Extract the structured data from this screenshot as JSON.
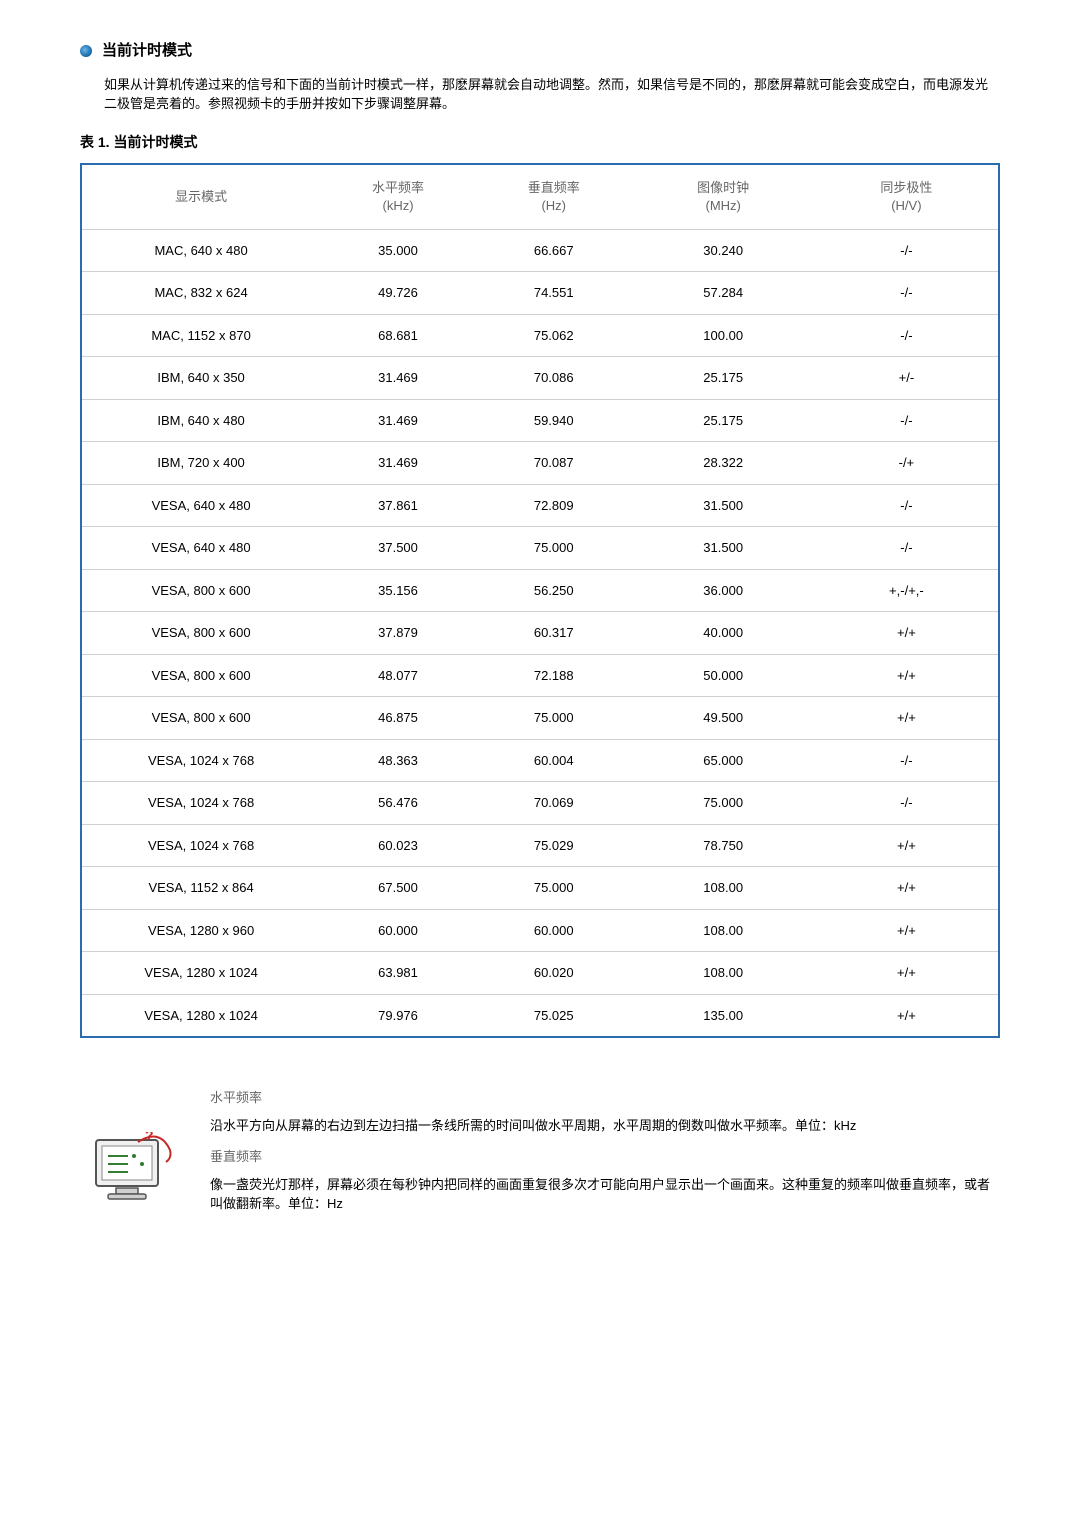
{
  "section": {
    "title": "当前计时模式",
    "intro": "如果从计算机传递过来的信号和下面的当前计时模式一样，那麽屏幕就会自动地调整。然而，如果信号是不同的，那麽屏幕就可能会变成空白，而电源发光二极管是亮着的。参照视频卡的手册并按如下步骤调整屏幕。"
  },
  "table": {
    "title": "表 1. 当前计时模式",
    "headers": {
      "mode": "显示模式",
      "hfreq": "水平频率",
      "hfreq_unit": "(kHz)",
      "vfreq": "垂直频率",
      "vfreq_unit": "(Hz)",
      "pclock": "图像时钟",
      "pclock_unit": "(MHz)",
      "sync": "同步极性",
      "sync_unit": "(H/V)"
    },
    "rows": [
      {
        "mode": "MAC, 640 x 480",
        "h": "35.000",
        "v": "66.667",
        "p": "30.240",
        "s": "-/-"
      },
      {
        "mode": "MAC, 832 x 624",
        "h": "49.726",
        "v": "74.551",
        "p": "57.284",
        "s": "-/-"
      },
      {
        "mode": "MAC, 1152 x 870",
        "h": "68.681",
        "v": "75.062",
        "p": "100.00",
        "s": "-/-"
      },
      {
        "mode": "IBM, 640 x 350",
        "h": "31.469",
        "v": "70.086",
        "p": "25.175",
        "s": "+/-"
      },
      {
        "mode": "IBM, 640 x 480",
        "h": "31.469",
        "v": "59.940",
        "p": "25.175",
        "s": "-/-"
      },
      {
        "mode": "IBM, 720 x 400",
        "h": "31.469",
        "v": "70.087",
        "p": "28.322",
        "s": "-/+"
      },
      {
        "mode": "VESA, 640 x 480",
        "h": "37.861",
        "v": "72.809",
        "p": "31.500",
        "s": "-/-"
      },
      {
        "mode": "VESA, 640 x 480",
        "h": "37.500",
        "v": "75.000",
        "p": "31.500",
        "s": "-/-"
      },
      {
        "mode": "VESA, 800 x 600",
        "h": "35.156",
        "v": "56.250",
        "p": "36.000",
        "s": "+,-/+,-"
      },
      {
        "mode": "VESA, 800 x 600",
        "h": "37.879",
        "v": "60.317",
        "p": "40.000",
        "s": "+/+"
      },
      {
        "mode": "VESA, 800 x 600",
        "h": "48.077",
        "v": "72.188",
        "p": "50.000",
        "s": "+/+"
      },
      {
        "mode": "VESA, 800 x 600",
        "h": "46.875",
        "v": "75.000",
        "p": "49.500",
        "s": "+/+"
      },
      {
        "mode": "VESA, 1024 x 768",
        "h": "48.363",
        "v": "60.004",
        "p": "65.000",
        "s": "-/-"
      },
      {
        "mode": "VESA, 1024 x 768",
        "h": "56.476",
        "v": "70.069",
        "p": "75.000",
        "s": "-/-"
      },
      {
        "mode": "VESA, 1024 x 768",
        "h": "60.023",
        "v": "75.029",
        "p": "78.750",
        "s": "+/+"
      },
      {
        "mode": "VESA, 1152 x 864",
        "h": "67.500",
        "v": "75.000",
        "p": "108.00",
        "s": "+/+"
      },
      {
        "mode": "VESA, 1280 x 960",
        "h": "60.000",
        "v": "60.000",
        "p": "108.00",
        "s": "+/+"
      },
      {
        "mode": "VESA, 1280 x 1024",
        "h": "63.981",
        "v": "60.020",
        "p": "108.00",
        "s": "+/+"
      },
      {
        "mode": "VESA, 1280 x 1024",
        "h": "79.976",
        "v": "75.025",
        "p": "135.00",
        "s": "+/+"
      }
    ]
  },
  "footer": {
    "hfreq_title": "水平频率",
    "hfreq_body": "沿水平方向从屏幕的右边到左边扫描一条线所需的时间叫做水平周期，水平周期的倒数叫做水平频率。单位：kHz",
    "vfreq_title": "垂直频率",
    "vfreq_body": "像一盏荧光灯那样，屏幕必须在每秒钟内把同样的画面重复很多次才可能向用户显示出一个画面来。这种重复的频率叫做垂直频率，或者叫做翻新率。单位：Hz"
  },
  "style": {
    "border_color": "#2b6cb0",
    "row_border": "#d0d0d0",
    "header_color": "#666666",
    "col_widths": [
      "26%",
      "17%",
      "17%",
      "20%",
      "20%"
    ]
  }
}
